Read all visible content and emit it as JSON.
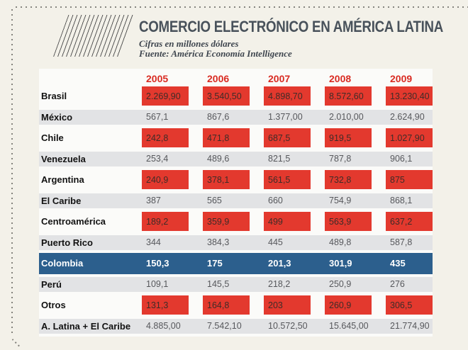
{
  "header": {
    "title": "COMERCIO ELECTRÓNICO EN AMÉRICA LATINA",
    "subtitle": "Cifras en millones dólares",
    "source": "Fuente: América Economía Intelligence"
  },
  "colors": {
    "background": "#f3f1e9",
    "table_bg": "#fbfbf9",
    "accent_red": "#e3392e",
    "year_red": "#d92b22",
    "band_gray": "#e2e3e5",
    "highlight_blue": "#2c5f8d",
    "title_gray": "#49525b"
  },
  "chart_data": {
    "type": "table",
    "title": "Comercio electrónico en América Latina",
    "unit": "millones de dólares",
    "source": "América Economía Intelligence",
    "columns": [
      "2005",
      "2006",
      "2007",
      "2008",
      "2009"
    ],
    "rows": [
      {
        "label": "Brasil",
        "style": "red-boxes",
        "values": [
          "2.269,90",
          "3.540,50",
          "4.898,70",
          "8.572,60",
          "13.230,40"
        ]
      },
      {
        "label": "México",
        "style": "gray-band",
        "values": [
          "567,1",
          "867,6",
          "1.377,00",
          "2.010,00",
          "2.624,90"
        ]
      },
      {
        "label": "Chile",
        "style": "red-boxes",
        "values": [
          "242,8",
          "471,8",
          "687,5",
          "919,5",
          "1.027,90"
        ]
      },
      {
        "label": "Venezuela",
        "style": "gray-band",
        "values": [
          "253,4",
          "489,6",
          "821,5",
          "787,8",
          "906,1"
        ]
      },
      {
        "label": "Argentina",
        "style": "red-boxes",
        "values": [
          "240,9",
          "378,1",
          "561,5",
          "732,8",
          "875"
        ]
      },
      {
        "label": "El Caribe",
        "style": "gray-band",
        "values": [
          "387",
          "565",
          "660",
          "754,9",
          "868,1"
        ]
      },
      {
        "label": "Centroamérica",
        "style": "red-boxes",
        "values": [
          "189,2",
          "359,9",
          "499",
          "563,9",
          "637,2"
        ]
      },
      {
        "label": "Puerto Rico",
        "style": "gray-band",
        "values": [
          "344",
          "384,3",
          "445",
          "489,8",
          "587,8"
        ]
      },
      {
        "label": "Colombia",
        "style": "highlight",
        "values": [
          "150,3",
          "175",
          "201,3",
          "301,9",
          "435"
        ]
      },
      {
        "label": "Perú",
        "style": "gray-band",
        "values": [
          "109,1",
          "145,5",
          "218,2",
          "250,9",
          "276"
        ]
      },
      {
        "label": "Otros",
        "style": "red-boxes",
        "values": [
          "131,3",
          "164,8",
          "203",
          "260,9",
          "306,5"
        ]
      },
      {
        "label": "A. Latina + El Caribe",
        "style": "gray-band",
        "values": [
          "4.885,00",
          "7.542,10",
          "10.572,50",
          "15.645,00",
          "21.774,90"
        ]
      }
    ]
  }
}
